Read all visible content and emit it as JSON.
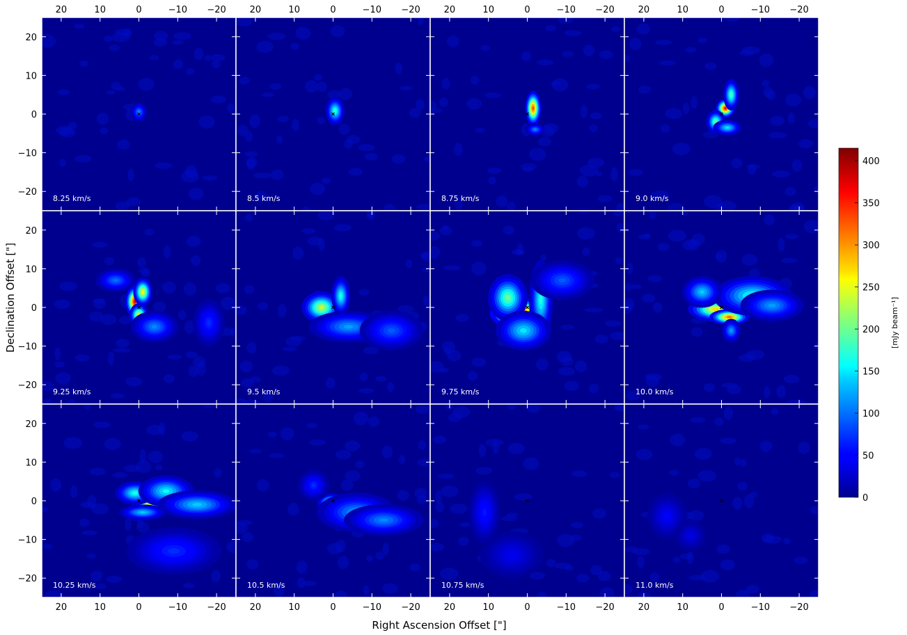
{
  "chart_data": {
    "type": "heatmap",
    "title": "",
    "xlabel": "Right Ascension Offset [\"]",
    "ylabel": "Declination Offset [\"]",
    "xlim": [
      25,
      -25
    ],
    "ylim": [
      -25,
      25
    ],
    "xticks": [
      20,
      10,
      0,
      -10,
      -20
    ],
    "yticks": [
      20,
      10,
      0,
      -10,
      -20
    ],
    "xtick_labels": [
      "20",
      "10",
      "0",
      "−10",
      "−20"
    ],
    "ytick_labels": [
      "20",
      "10",
      "0",
      "−10",
      "−20"
    ],
    "grid": false,
    "colormap": "jet",
    "background_color": "#00008f",
    "colorbar": {
      "label": "[mJy beam⁻¹]",
      "range": [
        0,
        415
      ],
      "ticks": [
        0,
        50,
        100,
        150,
        200,
        250,
        300,
        350,
        400
      ],
      "tick_labels": [
        "0",
        "50",
        "100",
        "150",
        "200",
        "250",
        "300",
        "350",
        "400"
      ]
    },
    "panels": [
      {
        "velocity": "8.25 km/s",
        "marker_at": [
          0,
          0
        ],
        "emission": [
          {
            "x": 0,
            "y": 0.5,
            "sx": 1.0,
            "sy": 1.2,
            "peak": 110
          }
        ]
      },
      {
        "velocity": "8.5 km/s",
        "marker_at": [
          0,
          0
        ],
        "emission": [
          {
            "x": -0.5,
            "y": 0.8,
            "sx": 1.2,
            "sy": 1.8,
            "peak": 175
          }
        ]
      },
      {
        "velocity": "8.75 km/s",
        "marker_at": [
          0,
          0
        ],
        "emission": [
          {
            "x": -1.5,
            "y": 1.5,
            "sx": 1.0,
            "sy": 2.2,
            "peak": 330
          },
          {
            "x": -2.0,
            "y": -4.0,
            "sx": 1.2,
            "sy": 0.8,
            "peak": 110
          }
        ]
      },
      {
        "velocity": "9.0 km/s",
        "marker_at": [
          0,
          0
        ],
        "emission": [
          {
            "x": -1.0,
            "y": 1.5,
            "sx": 1.2,
            "sy": 1.2,
            "peak": 360
          },
          {
            "x": -2.5,
            "y": 5.0,
            "sx": 1.0,
            "sy": 2.0,
            "peak": 190
          },
          {
            "x": 1.5,
            "y": -2.0,
            "sx": 1.2,
            "sy": 1.5,
            "peak": 200
          },
          {
            "x": -1.5,
            "y": -3.5,
            "sx": 1.8,
            "sy": 1.0,
            "peak": 150
          }
        ]
      },
      {
        "velocity": "9.25 km/s",
        "marker_at": [
          0,
          0
        ],
        "emission": [
          {
            "x": 1.0,
            "y": 1.5,
            "sx": 1.2,
            "sy": 2.0,
            "peak": 370
          },
          {
            "x": -1.0,
            "y": 4.0,
            "sx": 1.2,
            "sy": 1.8,
            "peak": 260
          },
          {
            "x": 0.0,
            "y": -2.0,
            "sx": 1.2,
            "sy": 1.5,
            "peak": 250
          },
          {
            "x": 6.0,
            "y": 7.0,
            "sx": 2.5,
            "sy": 1.5,
            "peak": 100
          },
          {
            "x": -4.0,
            "y": -5.0,
            "sx": 3.0,
            "sy": 2.0,
            "peak": 110
          },
          {
            "x": -18.0,
            "y": -4.0,
            "sx": 2.0,
            "sy": 3.0,
            "peak": 70
          }
        ]
      },
      {
        "velocity": "9.5 km/s",
        "marker_at": [
          0,
          0
        ],
        "emission": [
          {
            "x": 3.0,
            "y": 0.0,
            "sx": 2.5,
            "sy": 2.0,
            "peak": 235
          },
          {
            "x": -2.0,
            "y": 3.0,
            "sx": 1.2,
            "sy": 2.5,
            "peak": 170
          },
          {
            "x": -4.0,
            "y": -5.0,
            "sx": 5.0,
            "sy": 2.0,
            "peak": 120
          },
          {
            "x": -15.0,
            "y": -6.0,
            "sx": 4.0,
            "sy": 2.5,
            "peak": 90
          }
        ]
      },
      {
        "velocity": "9.75 km/s",
        "marker_at": [
          0,
          0
        ],
        "emission": [
          {
            "x": 2.5,
            "y": -1.5,
            "sx": 3.5,
            "sy": 2.0,
            "peak": 415
          },
          {
            "x": 5.0,
            "y": 2.5,
            "sx": 2.5,
            "sy": 3.0,
            "peak": 200
          },
          {
            "x": -3.5,
            "y": 2.0,
            "sx": 1.5,
            "sy": 5.0,
            "peak": 170
          },
          {
            "x": 1.0,
            "y": -6.0,
            "sx": 3.5,
            "sy": 2.5,
            "peak": 150
          },
          {
            "x": -9.0,
            "y": 7.0,
            "sx": 4.0,
            "sy": 2.5,
            "peak": 90
          }
        ]
      },
      {
        "velocity": "10.0 km/s",
        "marker_at": [
          0,
          0
        ],
        "emission": [
          {
            "x": 1.5,
            "y": -0.5,
            "sx": 3.5,
            "sy": 1.5,
            "peak": 270
          },
          {
            "x": -2.0,
            "y": -2.5,
            "sx": 2.5,
            "sy": 1.0,
            "peak": 320
          },
          {
            "x": -8.0,
            "y": 3.0,
            "sx": 5.0,
            "sy": 2.5,
            "peak": 170
          },
          {
            "x": -13.0,
            "y": 0.5,
            "sx": 4.0,
            "sy": 2.0,
            "peak": 120
          },
          {
            "x": 5.0,
            "y": 4.0,
            "sx": 2.5,
            "sy": 2.0,
            "peak": 140
          },
          {
            "x": -2.5,
            "y": -6.0,
            "sx": 1.2,
            "sy": 1.5,
            "peak": 120
          }
        ]
      },
      {
        "velocity": "10.25 km/s",
        "marker_at": [
          0,
          0
        ],
        "emission": [
          {
            "x": -3.0,
            "y": -0.5,
            "sx": 2.5,
            "sy": 1.5,
            "peak": 270
          },
          {
            "x": 1.0,
            "y": 2.0,
            "sx": 2.5,
            "sy": 1.5,
            "peak": 170
          },
          {
            "x": -7.0,
            "y": 2.5,
            "sx": 3.5,
            "sy": 2.0,
            "peak": 160
          },
          {
            "x": -15.0,
            "y": -1.0,
            "sx": 5.0,
            "sy": 1.8,
            "peak": 140
          },
          {
            "x": -1.0,
            "y": -3.0,
            "sx": 3.0,
            "sy": 1.0,
            "peak": 140
          },
          {
            "x": -9.0,
            "y": -13.0,
            "sx": 6.0,
            "sy": 3.0,
            "peak": 70
          }
        ]
      },
      {
        "velocity": "10.5 km/s",
        "marker_at": [
          0,
          0
        ],
        "emission": [
          {
            "x": 0.5,
            "y": -0.5,
            "sx": 1.8,
            "sy": 1.2,
            "peak": 210
          },
          {
            "x": -6.0,
            "y": -3.0,
            "sx": 5.0,
            "sy": 2.5,
            "peak": 120
          },
          {
            "x": -13.0,
            "y": -5.0,
            "sx": 5.0,
            "sy": 2.0,
            "peak": 110
          },
          {
            "x": 5.0,
            "y": 4.0,
            "sx": 2.0,
            "sy": 2.0,
            "peak": 70
          }
        ]
      },
      {
        "velocity": "10.75 km/s",
        "marker_at": [
          0,
          0
        ],
        "emission": [
          {
            "x": 11.0,
            "y": -3.0,
            "sx": 2.0,
            "sy": 4.0,
            "peak": 60
          },
          {
            "x": 4.0,
            "y": -14.0,
            "sx": 4.0,
            "sy": 3.0,
            "peak": 40
          }
        ]
      },
      {
        "velocity": "11.0 km/s",
        "marker_at": [
          0,
          0
        ],
        "emission": [
          {
            "x": 14.0,
            "y": -4.0,
            "sx": 2.5,
            "sy": 3.0,
            "peak": 45
          },
          {
            "x": 8.0,
            "y": -9.0,
            "sx": 2.0,
            "sy": 2.0,
            "peak": 35
          }
        ]
      }
    ]
  }
}
